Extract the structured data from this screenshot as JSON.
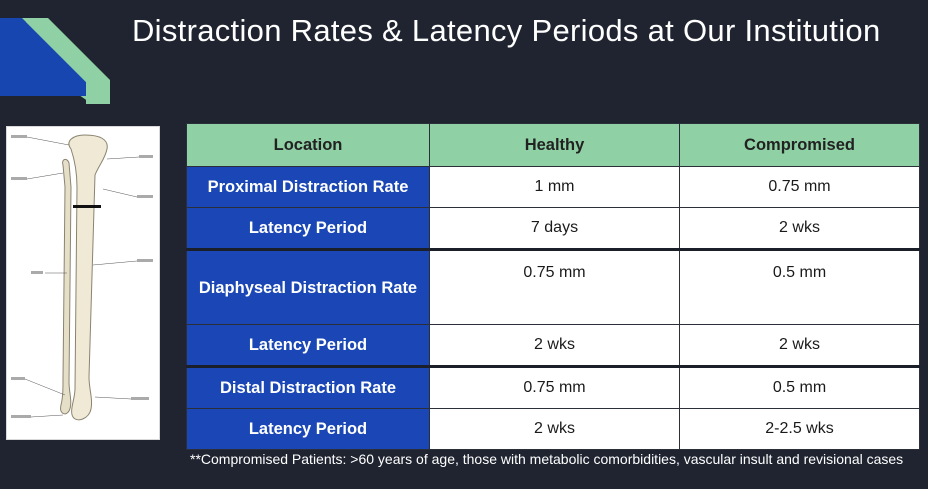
{
  "slide": {
    "title": "Distraction Rates & Latency Periods at Our Institution",
    "colors": {
      "background": "#1f2430",
      "header": "#8fd1a4",
      "row_header": "#1a47b5",
      "accent_blue": "#1846b0"
    }
  },
  "table": {
    "headers": [
      "Location",
      "Healthy",
      "Compromised"
    ],
    "rows": [
      {
        "label": "Proximal Distraction Rate",
        "healthy": "1 mm",
        "compromised": "0.75 mm"
      },
      {
        "label": "Latency Period",
        "healthy": "7 days",
        "compromised": "2 wks"
      },
      {
        "label": "Diaphyseal Distraction Rate",
        "healthy": "0.75 mm",
        "compromised": "0.5 mm"
      },
      {
        "label": "Latency Period",
        "healthy": "2 wks",
        "compromised": "2 wks"
      },
      {
        "label": "Distal Distraction Rate",
        "healthy": "0.75 mm",
        "compromised": "0.5 mm"
      },
      {
        "label": "Latency Period",
        "healthy": "2 wks",
        "compromised": "2-2.5 wks"
      }
    ]
  },
  "footnote": "**Compromised Patients:  >60 years of age, those with metabolic comorbidities, vascular insult and revisional cases",
  "image": {
    "subject": "tibia-fibula-illustration"
  }
}
